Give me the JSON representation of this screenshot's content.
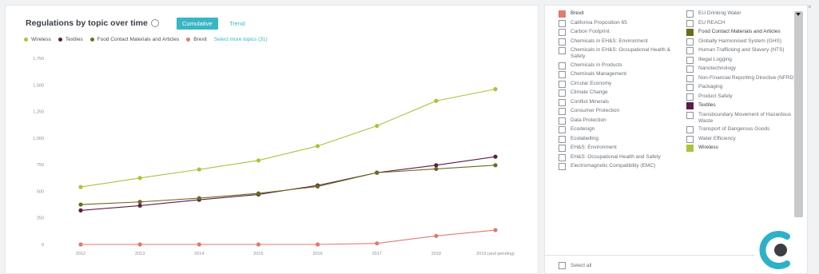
{
  "header": {
    "title": "Regulations by topic over time",
    "toggle_active": "Cumulative",
    "toggle_inactive": "Trend"
  },
  "legend": {
    "items": [
      {
        "label": "Wireless",
        "color": "#a8c43a"
      },
      {
        "label": "Textiles",
        "color": "#5a1d45"
      },
      {
        "label": "Food Contact Materials and Articles",
        "color": "#6b6b1e"
      },
      {
        "label": "Brexit",
        "color": "#e07a72"
      }
    ],
    "select_more": "Select more topics (31)"
  },
  "chart_data": {
    "type": "line",
    "categories": [
      "2012",
      "2013",
      "2014",
      "2015",
      "2016",
      "2017",
      "2018",
      "2019 (and pending)"
    ],
    "yticks": [
      "0",
      "250",
      "500",
      "750",
      "1,000",
      "1,250",
      "1,500",
      "1,750"
    ],
    "ylim": [
      0,
      1750
    ],
    "series": [
      {
        "name": "Wireless",
        "color": "#a8c43a",
        "values": [
          540,
          625,
          705,
          790,
          925,
          1115,
          1350,
          1460
        ]
      },
      {
        "name": "Textiles",
        "color": "#5a1d45",
        "values": [
          320,
          365,
          420,
          470,
          555,
          675,
          745,
          825
        ]
      },
      {
        "name": "Food Contact Materials and Articles",
        "color": "#6b6b1e",
        "values": [
          375,
          400,
          435,
          480,
          545,
          675,
          710,
          745
        ]
      },
      {
        "name": "Brexit",
        "color": "#e07a72",
        "values": [
          0,
          0,
          0,
          0,
          0,
          10,
          80,
          135
        ]
      }
    ]
  },
  "topics": {
    "left": [
      {
        "label": "Brexit",
        "checked": true,
        "color": "#e07a72"
      },
      {
        "label": "California Proposition 65",
        "checked": false
      },
      {
        "label": "Carbon Footprint",
        "checked": false
      },
      {
        "label": "Chemicals in EH&S: Environment",
        "checked": false
      },
      {
        "label": "Chemicals in EH&S: Occupational Health & Safety",
        "checked": false
      },
      {
        "label": "Chemicals in Products",
        "checked": false
      },
      {
        "label": "Chemicals Management",
        "checked": false
      },
      {
        "label": "Circular Economy",
        "checked": false
      },
      {
        "label": "Climate Change",
        "checked": false
      },
      {
        "label": "Conflict Minerals",
        "checked": false
      },
      {
        "label": "Consumer Protection",
        "checked": false
      },
      {
        "label": "Data Protection",
        "checked": false
      },
      {
        "label": "Ecodesign",
        "checked": false
      },
      {
        "label": "Ecolabelling",
        "checked": false
      },
      {
        "label": "EH&S: Environment",
        "checked": false
      },
      {
        "label": "EH&S: Occupational Health and Safety",
        "checked": false
      },
      {
        "label": "Electromagnetic Compatibility (EMC)",
        "checked": false
      }
    ],
    "right": [
      {
        "label": "EU Drinking Water",
        "checked": false
      },
      {
        "label": "EU REACH",
        "checked": false
      },
      {
        "label": "Food Contact Materials and Articles",
        "checked": true,
        "color": "#6b6b1e"
      },
      {
        "label": "Globally Harmonised System (GHS)",
        "checked": false
      },
      {
        "label": "Human Trafficking and Slavery (HTS)",
        "checked": false
      },
      {
        "label": "Illegal Logging",
        "checked": false
      },
      {
        "label": "Nanotechnology",
        "checked": false
      },
      {
        "label": "Non-Financial Reporting Directive (NFRD)",
        "checked": false
      },
      {
        "label": "Packaging",
        "checked": false
      },
      {
        "label": "Product Safety",
        "checked": false
      },
      {
        "label": "Textiles",
        "checked": true,
        "color": "#5a1d45"
      },
      {
        "label": "Transboundary Movement of Hazardous Waste",
        "checked": false
      },
      {
        "label": "Transport of Dangerous Goods",
        "checked": false
      },
      {
        "label": "Water Efficiency",
        "checked": false
      },
      {
        "label": "Wireless",
        "checked": true,
        "color": "#a8c43a"
      }
    ],
    "select_all": "Select all"
  },
  "icons": {
    "close": "close-icon",
    "info": "info-icon",
    "logo": "brand-logo"
  }
}
